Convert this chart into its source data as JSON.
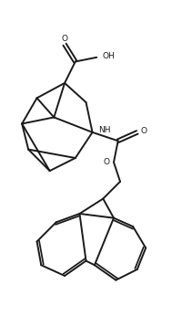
{
  "bg_color": "#ffffff",
  "line_color": "#1a1a1a",
  "line_width": 1.4,
  "figsize": [
    1.89,
    3.46
  ],
  "dpi": 100,
  "xlim": [
    0,
    10
  ],
  "ylim": [
    0,
    18
  ]
}
